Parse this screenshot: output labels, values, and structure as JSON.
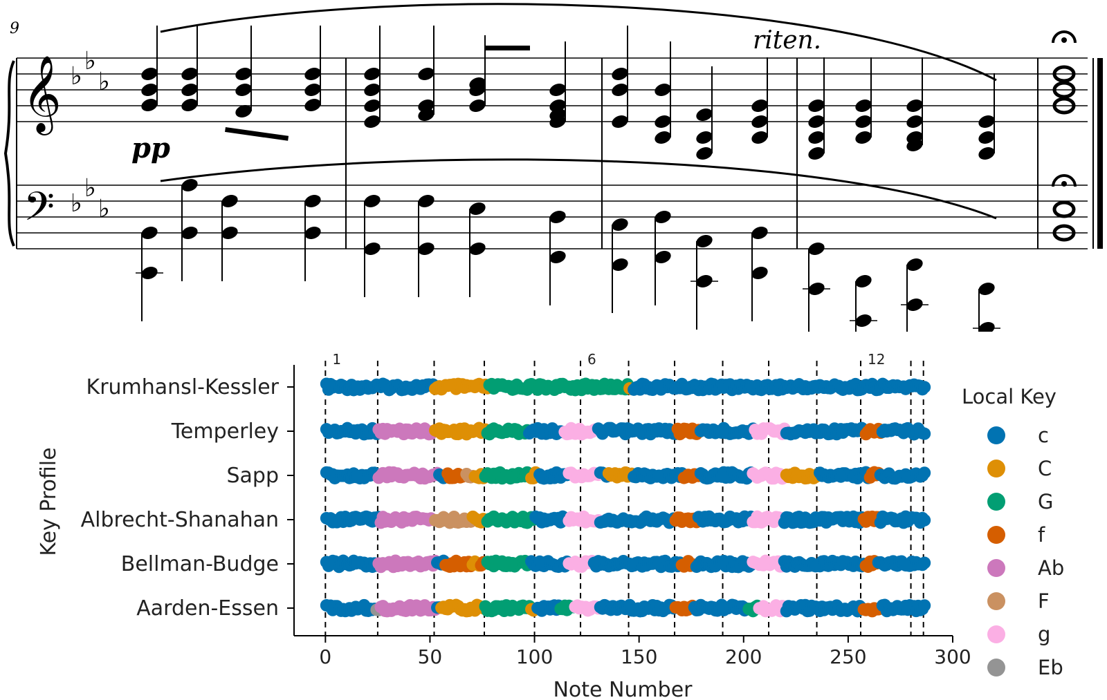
{
  "score": {
    "measure_number": "9",
    "dynamic": "pp",
    "tempo_marking": "riten.",
    "key_signature": "3 flats",
    "clefs": [
      "treble",
      "bass"
    ],
    "fermata": true,
    "icons": [
      "treble-clef-icon",
      "bass-clef-icon",
      "fermata-icon",
      "brace-icon"
    ]
  },
  "chart_data": {
    "type": "scatter",
    "xlabel": "Note Number",
    "ylabel": "Key Profile",
    "xlim": [
      -15,
      300
    ],
    "xticks": [
      0,
      50,
      100,
      150,
      200,
      250,
      300
    ],
    "categories": [
      "Krumhansl-Kessler",
      "Temperley",
      "Sapp",
      "Albrecht-Shanahan",
      "Bellman-Budge",
      "Aarden-Essen"
    ],
    "legend_title": "Local Key",
    "legend_position": "right",
    "keys": [
      {
        "name": "c",
        "color": "#0173b2"
      },
      {
        "name": "C",
        "color": "#de8f05"
      },
      {
        "name": "G",
        "color": "#029e73"
      },
      {
        "name": "f",
        "color": "#d55e00"
      },
      {
        "name": "Ab",
        "color": "#cc78bc"
      },
      {
        "name": "F",
        "color": "#ca9161"
      },
      {
        "name": "g",
        "color": "#fbafe4"
      },
      {
        "name": "Eb",
        "color": "#949494"
      }
    ],
    "measure_lines": [
      0,
      25,
      52,
      76,
      100,
      122,
      145,
      167,
      190,
      212,
      235,
      256,
      280,
      286
    ],
    "measure_labels": [
      {
        "x": 0,
        "label": "1"
      },
      {
        "x": 122,
        "label": "6"
      },
      {
        "x": 256,
        "label": "12"
      }
    ],
    "segments": [
      [
        [
          0,
          52,
          "c"
        ],
        [
          52,
          78,
          "C"
        ],
        [
          78,
          145,
          "G"
        ],
        [
          145,
          147,
          "C"
        ],
        [
          147,
          287,
          "c"
        ]
      ],
      [
        [
          0,
          25,
          "c"
        ],
        [
          25,
          52,
          "Ab"
        ],
        [
          52,
          77,
          "C"
        ],
        [
          77,
          97,
          "G"
        ],
        [
          97,
          114,
          "c"
        ],
        [
          114,
          130,
          "g"
        ],
        [
          130,
          168,
          "c"
        ],
        [
          168,
          179,
          "f"
        ],
        [
          179,
          205,
          "c"
        ],
        [
          205,
          220,
          "g"
        ],
        [
          220,
          258,
          "c"
        ],
        [
          258,
          266,
          "f"
        ],
        [
          266,
          287,
          "c"
        ]
      ],
      [
        [
          0,
          25,
          "c"
        ],
        [
          25,
          54,
          "Ab"
        ],
        [
          54,
          58,
          "c"
        ],
        [
          58,
          67,
          "f"
        ],
        [
          67,
          71,
          "F"
        ],
        [
          71,
          76,
          "C"
        ],
        [
          76,
          98,
          "G"
        ],
        [
          98,
          102,
          "C"
        ],
        [
          102,
          116,
          "c"
        ],
        [
          116,
          131,
          "g"
        ],
        [
          131,
          135,
          "c"
        ],
        [
          135,
          147,
          "C"
        ],
        [
          147,
          171,
          "c"
        ],
        [
          171,
          179,
          "f"
        ],
        [
          179,
          204,
          "c"
        ],
        [
          204,
          220,
          "g"
        ],
        [
          220,
          236,
          "C"
        ],
        [
          236,
          260,
          "c"
        ],
        [
          260,
          265,
          "f"
        ],
        [
          265,
          287,
          "c"
        ]
      ],
      [
        [
          0,
          26,
          "c"
        ],
        [
          26,
          52,
          "Ab"
        ],
        [
          52,
          70,
          "F"
        ],
        [
          70,
          77,
          "C"
        ],
        [
          77,
          100,
          "G"
        ],
        [
          100,
          116,
          "c"
        ],
        [
          116,
          131,
          "g"
        ],
        [
          131,
          167,
          "c"
        ],
        [
          167,
          178,
          "f"
        ],
        [
          178,
          204,
          "c"
        ],
        [
          204,
          219,
          "g"
        ],
        [
          219,
          257,
          "c"
        ],
        [
          257,
          265,
          "f"
        ],
        [
          265,
          287,
          "c"
        ]
      ],
      [
        [
          0,
          25,
          "c"
        ],
        [
          25,
          53,
          "Ab"
        ],
        [
          53,
          57,
          "c"
        ],
        [
          57,
          70,
          "f"
        ],
        [
          70,
          74,
          "C"
        ],
        [
          74,
          77,
          "f"
        ],
        [
          77,
          98,
          "G"
        ],
        [
          98,
          116,
          "c"
        ],
        [
          116,
          128,
          "g"
        ],
        [
          128,
          170,
          "c"
        ],
        [
          170,
          177,
          "f"
        ],
        [
          177,
          204,
          "c"
        ],
        [
          204,
          219,
          "g"
        ],
        [
          219,
          258,
          "c"
        ],
        [
          258,
          264,
          "f"
        ],
        [
          264,
          287,
          "c"
        ]
      ],
      [
        [
          0,
          24,
          "c"
        ],
        [
          24,
          26,
          "Eb"
        ],
        [
          26,
          53,
          "Ab"
        ],
        [
          53,
          55,
          "c"
        ],
        [
          55,
          76,
          "C"
        ],
        [
          76,
          98,
          "G"
        ],
        [
          98,
          101,
          "C"
        ],
        [
          101,
          112,
          "c"
        ],
        [
          112,
          119,
          "G"
        ],
        [
          119,
          131,
          "g"
        ],
        [
          131,
          167,
          "c"
        ],
        [
          167,
          176,
          "f"
        ],
        [
          176,
          202,
          "c"
        ],
        [
          202,
          207,
          "G"
        ],
        [
          207,
          220,
          "g"
        ],
        [
          220,
          257,
          "c"
        ],
        [
          257,
          266,
          "f"
        ],
        [
          266,
          287,
          "c"
        ]
      ]
    ]
  }
}
